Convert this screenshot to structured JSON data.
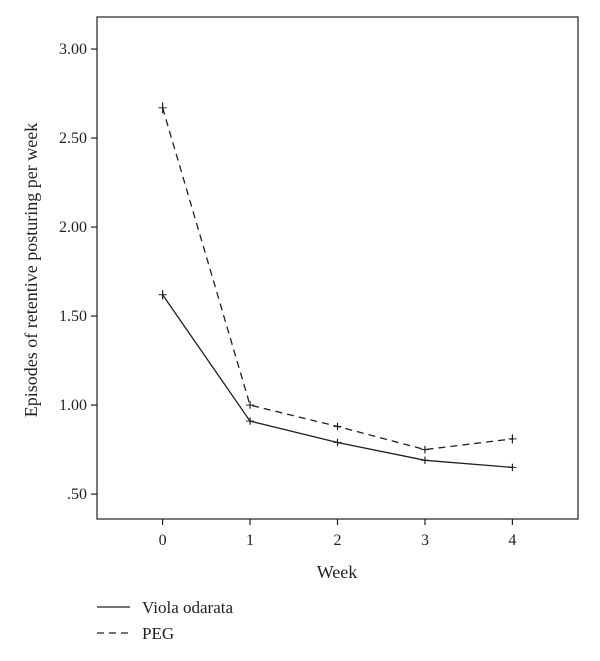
{
  "chart_data": {
    "type": "line",
    "title": "",
    "xlabel": "Week",
    "ylabel": "Episodes of retentive posturing per week",
    "x": [
      0,
      1,
      2,
      3,
      4
    ],
    "x_tick_labels": [
      "0",
      "1",
      "2",
      "3",
      "4"
    ],
    "xlim": [
      -0.75,
      4.75
    ],
    "y_ticks": [
      0.5,
      1.0,
      1.5,
      2.0,
      2.5,
      3.0
    ],
    "y_tick_labels": [
      ".50",
      "1.00",
      "1.50",
      "2.00",
      "2.50",
      "3.00"
    ],
    "ylim": [
      0.36,
      3.18
    ],
    "grid": false,
    "legend_position": "bottom-left",
    "error_bars": true,
    "series": [
      {
        "name": "Viola odarata",
        "style": "solid",
        "color": "#231f20",
        "values": [
          1.62,
          0.91,
          0.79,
          0.69,
          0.65
        ],
        "errors": [
          0.02,
          0.015,
          0.015,
          0.015,
          0.015
        ]
      },
      {
        "name": "PEG",
        "style": "dashed",
        "color": "#231f20",
        "values": [
          2.67,
          1.0,
          0.88,
          0.75,
          0.81
        ],
        "errors": [
          0.025,
          0.015,
          0.015,
          0.015,
          0.02
        ]
      }
    ]
  }
}
